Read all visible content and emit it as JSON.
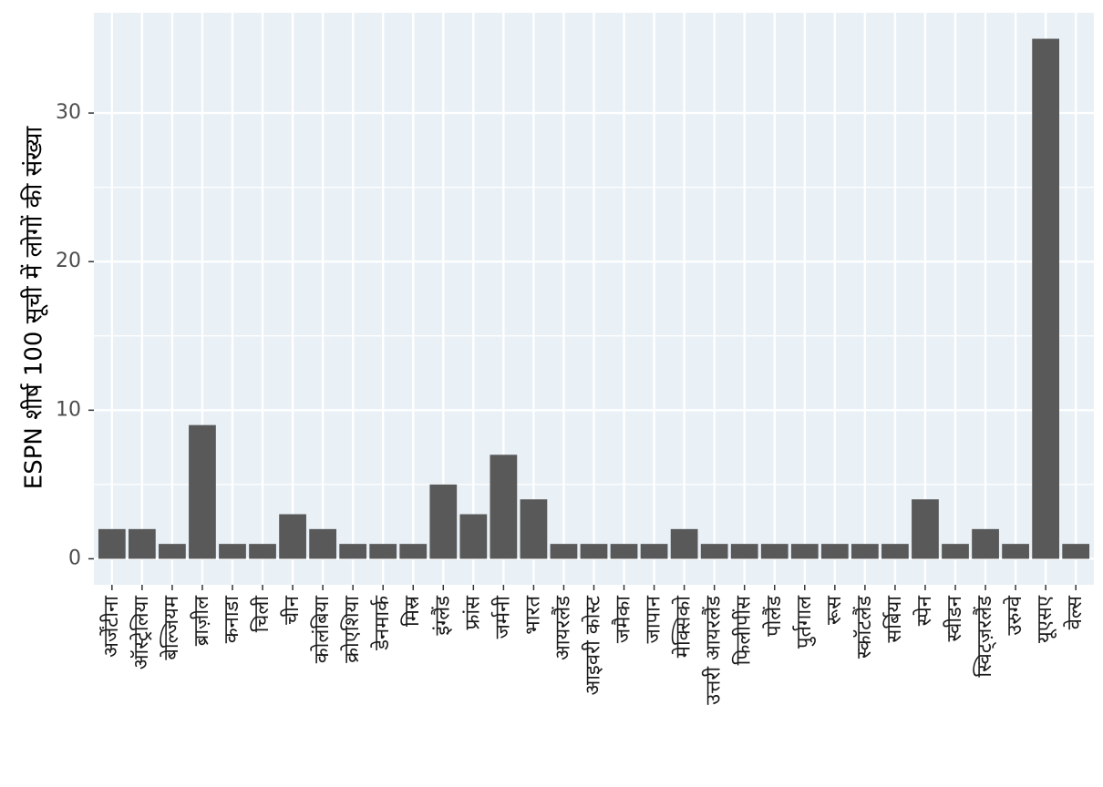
{
  "chart_data": {
    "type": "bar",
    "ylabel": "ESPN शीर्ष 100 सूची में लोगों की संख्या",
    "categories": [
      "अर्जेंटीना",
      "ऑस्ट्रेलिया",
      "बेल्जियम",
      "ब्राज़ील",
      "कनाडा",
      "चिली",
      "चीन",
      "कोलंबिया",
      "क्रोएशिया",
      "डेनमार्क",
      "मिस्र",
      "इंग्लैंड",
      "फ्रांस",
      "जर्मनी",
      "भारत",
      "आयरलैंड",
      "आइवरी कोस्ट",
      "जमैका",
      "जापान",
      "मेक्सिको",
      "उत्तरी आयरलैंड",
      "फिलीपींस",
      "पोलैंड",
      "पुर्तगाल",
      "रूस",
      "स्कॉटलैंड",
      "सर्बिया",
      "स्पेन",
      "स्वीडन",
      "स्विट्ज़रलैंड",
      "उरुग्वे",
      "यूएसए",
      "वेल्स"
    ],
    "values": [
      2,
      2,
      1,
      9,
      1,
      1,
      3,
      2,
      1,
      1,
      1,
      5,
      3,
      7,
      4,
      1,
      1,
      1,
      1,
      2,
      1,
      1,
      1,
      1,
      1,
      1,
      1,
      4,
      1,
      2,
      1,
      35,
      1
    ],
    "color": "#595959",
    "ylim": [
      -1.75,
      36.75
    ],
    "yticks": [
      0,
      10,
      20,
      30
    ],
    "grid": true
  }
}
